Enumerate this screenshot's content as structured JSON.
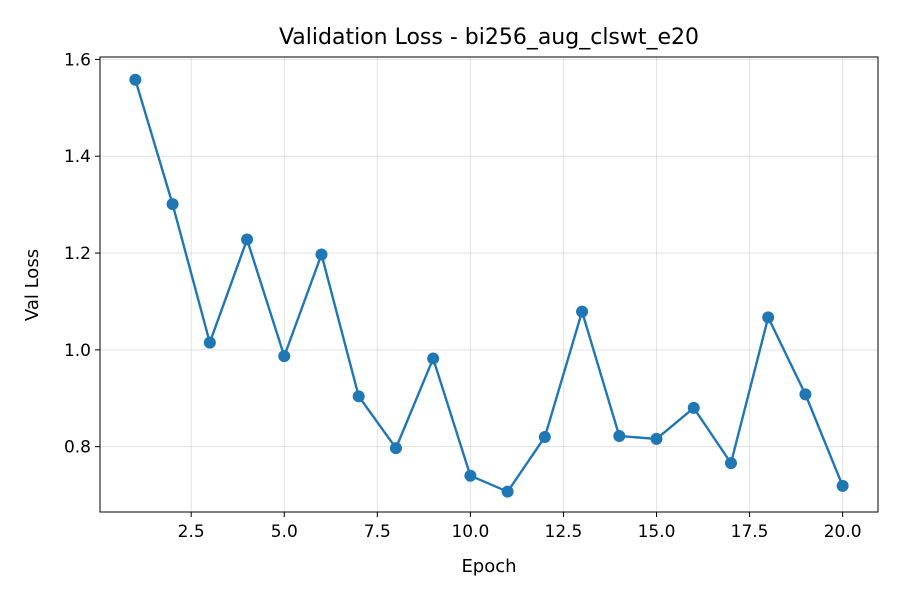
{
  "chart_data": {
    "type": "line",
    "title": "Validation Loss - bi256_aug_clswt_e20",
    "xlabel": "Epoch",
    "ylabel": "Val Loss",
    "x": [
      1,
      2,
      3,
      4,
      5,
      6,
      7,
      8,
      9,
      10,
      11,
      12,
      13,
      14,
      15,
      16,
      17,
      18,
      19,
      20
    ],
    "series": [
      {
        "values": [
          1.558,
          1.301,
          1.015,
          1.228,
          0.987,
          1.197,
          0.904,
          0.797,
          0.982,
          0.74,
          0.707,
          0.82,
          1.079,
          0.822,
          0.816,
          0.88,
          0.766,
          1.067,
          0.908,
          0.719
        ],
        "color": "#1f77b4",
        "marker": "circle"
      }
    ],
    "xlim": [
      0.05,
      20.95
    ],
    "ylim": [
      0.665,
      1.605
    ],
    "xticks": [
      2.5,
      5.0,
      7.5,
      10.0,
      12.5,
      15.0,
      17.5,
      20.0
    ],
    "xtick_labels": [
      "2.5",
      "5.0",
      "7.5",
      "10.0",
      "12.5",
      "15.0",
      "17.5",
      "20.0"
    ],
    "yticks": [
      0.8,
      1.0,
      1.2,
      1.4,
      1.6
    ],
    "ytick_labels": [
      "0.8",
      "1.0",
      "1.2",
      "1.4",
      "1.6"
    ],
    "grid": true,
    "legend": "none"
  }
}
